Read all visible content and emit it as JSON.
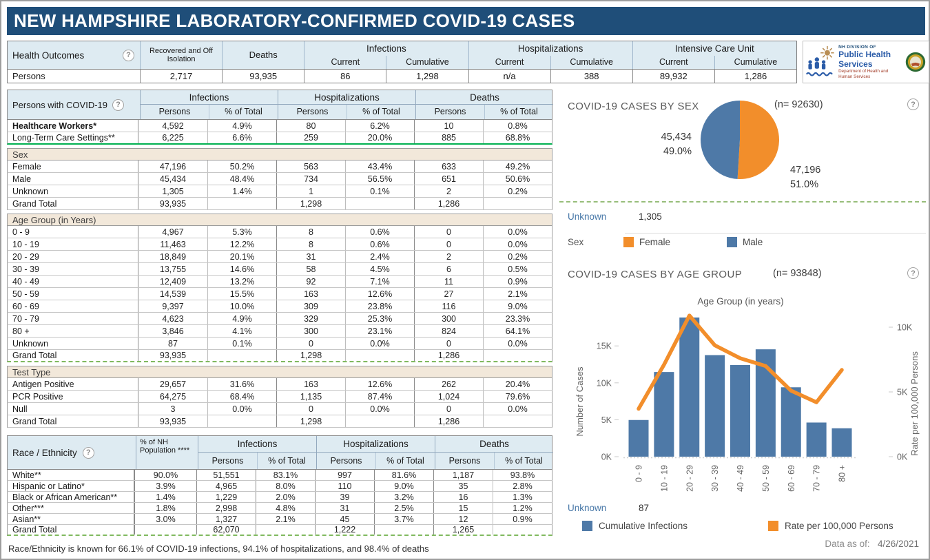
{
  "page": {
    "title": "NEW HAMPSHIRE LABORATORY-CONFIRMED COVID-19 CASES",
    "footnote": "Race/Ethnicity is known for 66.1% of COVID-19 infections, 94.1% of hospitalizations, and 98.4% of deaths"
  },
  "icons": {
    "help": "?"
  },
  "colors": {
    "navy": "#1F4E79",
    "header_blue": "#DEEBF2",
    "tan": "#F2E8DA",
    "blue": "#4E79A7",
    "orange": "#F28E2B",
    "green": "#00B050"
  },
  "outcomes": {
    "label": "Health Outcomes",
    "group_infections": "Infections",
    "group_hosp": "Hospitalizations",
    "group_icu": "Intensive Care Unit",
    "col_recovered": "Recovered and Off Isolation",
    "col_deaths": "Deaths",
    "sub_current": "Current",
    "sub_cumulative": "Cumulative",
    "row_label": "Persons",
    "values": [
      "2,717",
      "93,935",
      "86",
      "1,298",
      "n/a",
      "388",
      "89,932",
      "1,286"
    ]
  },
  "logo": {
    "line1": "NH DIVISION OF",
    "line2": "Public Health Services",
    "line3": "Department of Health and Human Services"
  },
  "persons_table": {
    "label": "Persons with COVID-19",
    "groups": [
      "Infections",
      "Hospitalizations",
      "Deaths"
    ],
    "subcols": [
      "Persons",
      "% of Total",
      "Persons",
      "% of Total",
      "Persons",
      "% of Total"
    ],
    "rows": [
      {
        "cls": "bold",
        "label": "Healthcare Workers*",
        "cells": [
          "4,592",
          "4.9%",
          "80",
          "6.2%",
          "10",
          "0.8%"
        ]
      },
      {
        "cls": "green-after",
        "label": "Long-Term Care Settings**",
        "cells": [
          "6,225",
          "6.6%",
          "259",
          "20.0%",
          "885",
          "68.8%"
        ]
      },
      {
        "cls": "section",
        "label": "Sex",
        "cells": []
      },
      {
        "cls": "",
        "label": "Female",
        "cells": [
          "47,196",
          "50.2%",
          "563",
          "43.4%",
          "633",
          "49.2%"
        ]
      },
      {
        "cls": "",
        "label": "Male",
        "cells": [
          "45,434",
          "48.4%",
          "734",
          "56.5%",
          "651",
          "50.6%"
        ]
      },
      {
        "cls": "",
        "label": "Unknown",
        "cells": [
          "1,305",
          "1.4%",
          "1",
          "0.1%",
          "2",
          "0.2%"
        ]
      },
      {
        "cls": "",
        "label": "Grand Total",
        "cells": [
          "93,935",
          "",
          "1,298",
          "",
          "1,286",
          ""
        ]
      },
      {
        "cls": "section",
        "label": "Age Group (in Years)",
        "cells": []
      },
      {
        "cls": "",
        "label": "0 - 9",
        "cells": [
          "4,967",
          "5.3%",
          "8",
          "0.6%",
          "0",
          "0.0%"
        ]
      },
      {
        "cls": "",
        "label": "10 - 19",
        "cells": [
          "11,463",
          "12.2%",
          "8",
          "0.6%",
          "0",
          "0.0%"
        ]
      },
      {
        "cls": "",
        "label": "20 - 29",
        "cells": [
          "18,849",
          "20.1%",
          "31",
          "2.4%",
          "2",
          "0.2%"
        ]
      },
      {
        "cls": "",
        "label": "30 - 39",
        "cells": [
          "13,755",
          "14.6%",
          "58",
          "4.5%",
          "6",
          "0.5%"
        ]
      },
      {
        "cls": "",
        "label": "40 - 49",
        "cells": [
          "12,409",
          "13.2%",
          "92",
          "7.1%",
          "11",
          "0.9%"
        ]
      },
      {
        "cls": "",
        "label": "50 - 59",
        "cells": [
          "14,539",
          "15.5%",
          "163",
          "12.6%",
          "27",
          "2.1%"
        ]
      },
      {
        "cls": "",
        "label": "60 - 69",
        "cells": [
          "9,397",
          "10.0%",
          "309",
          "23.8%",
          "116",
          "9.0%"
        ]
      },
      {
        "cls": "",
        "label": "70 - 79",
        "cells": [
          "4,623",
          "4.9%",
          "329",
          "25.3%",
          "300",
          "23.3%"
        ]
      },
      {
        "cls": "",
        "label": "80 +",
        "cells": [
          "3,846",
          "4.1%",
          "300",
          "23.1%",
          "824",
          "64.1%"
        ]
      },
      {
        "cls": "",
        "label": "Unknown",
        "cells": [
          "87",
          "0.1%",
          "0",
          "0.0%",
          "0",
          "0.0%"
        ]
      },
      {
        "cls": "dashed-after",
        "label": "Grand Total",
        "cells": [
          "93,935",
          "",
          "1,298",
          "",
          "1,286",
          ""
        ]
      },
      {
        "cls": "section",
        "label": "Test Type",
        "cells": []
      },
      {
        "cls": "",
        "label": "Antigen Positive",
        "cells": [
          "29,657",
          "31.6%",
          "163",
          "12.6%",
          "262",
          "20.4%"
        ]
      },
      {
        "cls": "",
        "label": "PCR Positive",
        "cells": [
          "64,275",
          "68.4%",
          "1,135",
          "87.4%",
          "1,024",
          "79.6%"
        ]
      },
      {
        "cls": "",
        "label": "Null",
        "cells": [
          "3",
          "0.0%",
          "0",
          "0.0%",
          "0",
          "0.0%"
        ]
      },
      {
        "cls": "",
        "label": "Grand Total",
        "cells": [
          "93,935",
          "",
          "1,298",
          "",
          "1,286",
          ""
        ]
      }
    ]
  },
  "race_table": {
    "label": "Race / Ethnicity",
    "pop_col_header": "% of NH Population ****",
    "groups": [
      "Infections",
      "Hospitalizations",
      "Deaths"
    ],
    "subcols": [
      "Persons",
      "% of Total",
      "Persons",
      "% of Total",
      "Persons",
      "% of Total"
    ],
    "rows": [
      {
        "cls": "",
        "label": "White**",
        "cells": [
          "90.0%",
          "51,551",
          "83.1%",
          "997",
          "81.6%",
          "1,187",
          "93.8%"
        ]
      },
      {
        "cls": "",
        "label": "Hispanic or Latino*",
        "cells": [
          "3.9%",
          "4,965",
          "8.0%",
          "110",
          "9.0%",
          "35",
          "2.8%"
        ]
      },
      {
        "cls": "",
        "label": "Black or African American**",
        "cells": [
          "1.4%",
          "1,229",
          "2.0%",
          "39",
          "3.2%",
          "16",
          "1.3%"
        ]
      },
      {
        "cls": "",
        "label": "Other***",
        "cells": [
          "1.8%",
          "2,998",
          "4.8%",
          "31",
          "2.5%",
          "15",
          "1.2%"
        ]
      },
      {
        "cls": "",
        "label": "Asian**",
        "cells": [
          "3.0%",
          "1,327",
          "2.1%",
          "45",
          "3.7%",
          "12",
          "0.9%"
        ]
      },
      {
        "cls": "dashed-after",
        "label": "Grand Total",
        "cells": [
          "",
          "62,070",
          "",
          "1,222",
          "",
          "1,265",
          ""
        ]
      }
    ]
  },
  "sex_chart": {
    "title": "COVID-19 CASES BY SEX",
    "n_label": "(n= 92630)",
    "male_value": "45,434",
    "male_pct": "49.0%",
    "female_value": "47,196",
    "female_pct": "51.0%",
    "unknown_label": "Unknown",
    "unknown_value": "1,305",
    "legend_title": "Sex",
    "legend_female": "Female",
    "legend_male": "Male"
  },
  "age_chart": {
    "title": "COVID-19 CASES BY AGE GROUP",
    "n_label": "(n= 93848)",
    "unknown_label": "Unknown",
    "unknown_value": "87",
    "legend_bar": "Cumulative Infections",
    "legend_line": "Rate per 100,000 Persons"
  },
  "footer": {
    "data_as_of": "Data as of:",
    "date": "4/26/2021"
  },
  "chart_data": [
    {
      "type": "pie",
      "title": "COVID-19 CASES BY SEX",
      "n": 92630,
      "slices": [
        {
          "label": "Female",
          "value": 47196,
          "pct": 51.0,
          "color": "#F28E2B"
        },
        {
          "label": "Male",
          "value": 45434,
          "pct": 49.0,
          "color": "#4E79A7"
        }
      ],
      "unknown": 1305,
      "legend_position": "bottom"
    },
    {
      "type": "bar",
      "title": "COVID-19 CASES BY AGE GROUP",
      "n": 93848,
      "xlabel": "Age Group (in years)",
      "categories": [
        "0 - 9",
        "10 - 19",
        "20 - 29",
        "30 - 39",
        "40 - 49",
        "50 - 59",
        "60 - 69",
        "70 - 79",
        "80 +"
      ],
      "series": [
        {
          "name": "Cumulative Infections",
          "type": "bar",
          "axis": "left",
          "color": "#4E79A7",
          "values": [
            4967,
            11463,
            18849,
            13755,
            12409,
            14539,
            9397,
            4623,
            3846
          ]
        },
        {
          "name": "Rate per 100,000 Persons",
          "type": "line",
          "axis": "right",
          "color": "#F28E2B",
          "values": [
            3700,
            7100,
            10900,
            8600,
            7600,
            7000,
            5100,
            4200,
            6700
          ]
        }
      ],
      "left_axis": {
        "label": "Number of Cases",
        "ticks": [
          "0K",
          "5K",
          "10K",
          "15K"
        ],
        "tick_step": 5000,
        "max": 19000
      },
      "right_axis": {
        "label": "Rate per 100,000 Persons",
        "ticks": [
          "0K",
          "5K",
          "10K"
        ],
        "tick_step": 5000
      },
      "unknown": 87,
      "grid": false,
      "legend_position": "bottom"
    }
  ]
}
